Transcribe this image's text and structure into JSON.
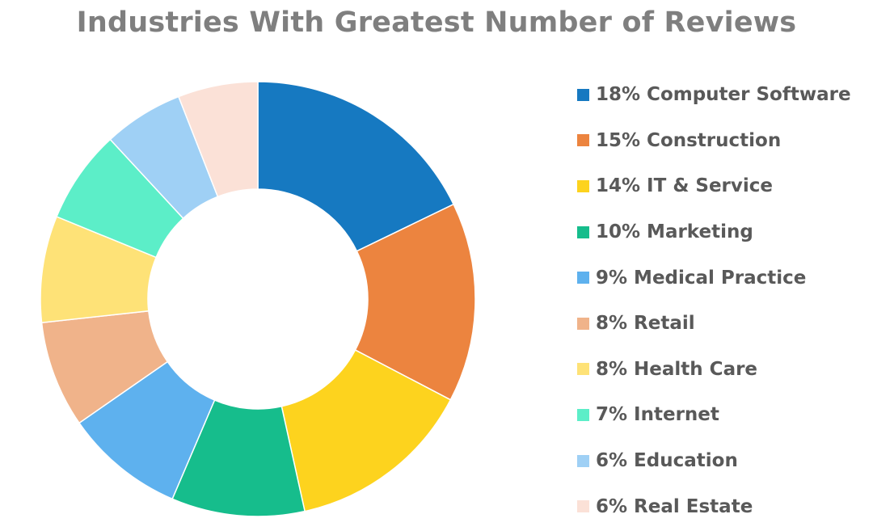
{
  "chart_data": {
    "type": "pie",
    "donut": true,
    "title": "Industries With Greatest Number of Reviews",
    "legend_position": "right",
    "slices": [
      {
        "name": "Computer Software",
        "label": "18% Computer Software",
        "value": 18,
        "color": "#1679c1"
      },
      {
        "name": "Construction",
        "label": "15% Construction",
        "value": 15,
        "color": "#ec843f"
      },
      {
        "name": "IT & Service",
        "label": "14% IT & Service",
        "value": 14,
        "color": "#fdd31e"
      },
      {
        "name": "Marketing",
        "label": "10% Marketing",
        "value": 10,
        "color": "#16bd8c"
      },
      {
        "name": "Medical Practice",
        "label": "9% Medical Practice",
        "value": 9,
        "color": "#5eb1ee"
      },
      {
        "name": "Retail",
        "label": "8% Retail",
        "value": 8,
        "color": "#f0b38a"
      },
      {
        "name": "Health Care",
        "label": "8% Health Care",
        "value": 8,
        "color": "#fee277"
      },
      {
        "name": "Internet",
        "label": "7% Internet",
        "value": 7,
        "color": "#5ceec8"
      },
      {
        "name": "Education",
        "label": "6% Education",
        "value": 6,
        "color": "#9fd0f5"
      },
      {
        "name": "Real Estate",
        "label": "6% Real Estate",
        "value": 6,
        "color": "#fbe1d7"
      }
    ]
  }
}
